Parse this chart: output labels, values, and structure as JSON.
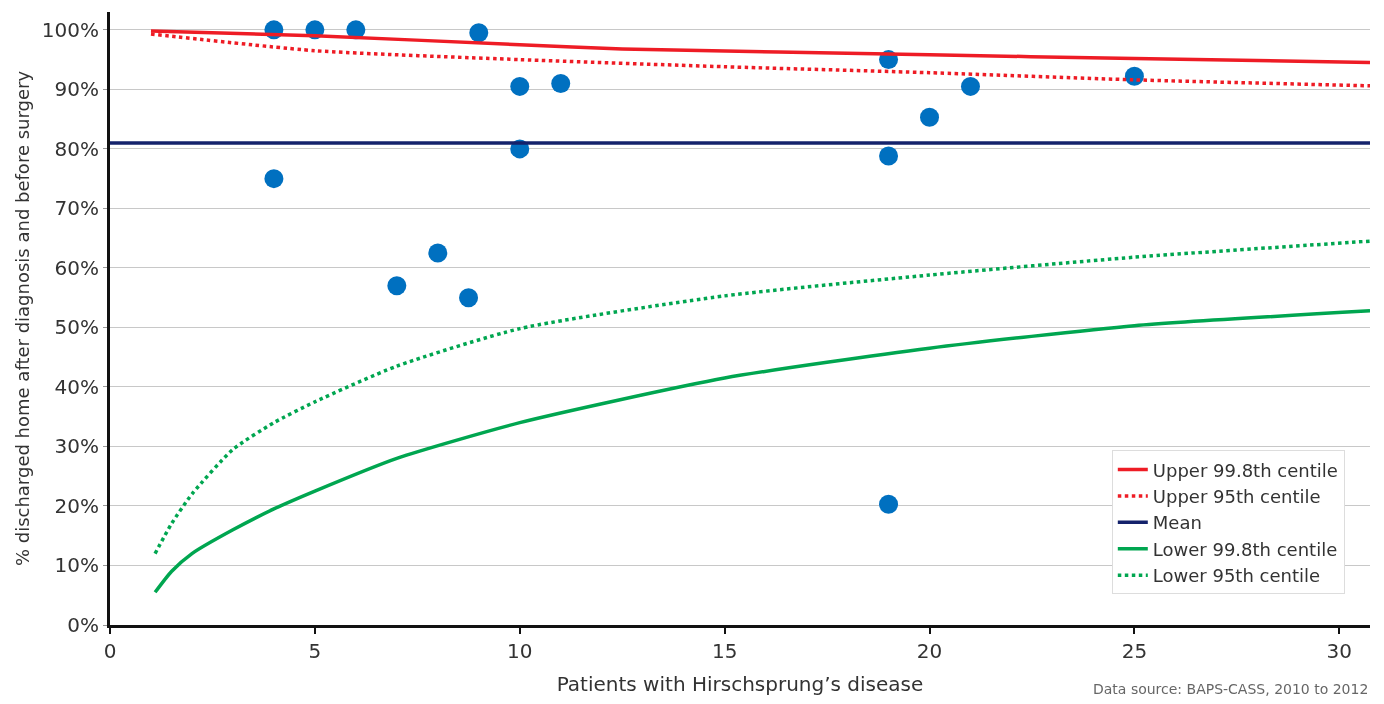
{
  "chart_data": {
    "type": "scatter",
    "xlabel": "Patients with Hirschsprung’s disease",
    "ylabel": "% discharged home after diagnosis and before surgery",
    "xlim": [
      0,
      30.75
    ],
    "xticks": [
      0,
      5,
      10,
      15,
      20,
      25,
      30
    ],
    "ylim": [
      0,
      103
    ],
    "yticks": [
      {
        "value": 0,
        "label": "0%"
      },
      {
        "value": 10,
        "label": "10%"
      },
      {
        "value": 20,
        "label": "20%"
      },
      {
        "value": 30,
        "label": "30%"
      },
      {
        "value": 40,
        "label": "40%"
      },
      {
        "value": 50,
        "label": "50%"
      },
      {
        "value": 60,
        "label": "60%"
      },
      {
        "value": 70,
        "label": "70%"
      },
      {
        "value": 80,
        "label": "80%"
      },
      {
        "value": 90,
        "label": "90%"
      },
      {
        "value": 100,
        "label": "100%"
      }
    ],
    "grid": "y",
    "legend": "bottom right",
    "marker": "circle",
    "annotations": [
      "Data source: BAPS-CASS, 2010 to 2012"
    ],
    "series": [
      {
        "color": "#0070c0",
        "x": [
          4,
          5,
          6,
          9,
          4,
          7,
          8,
          8.75,
          10,
          10,
          11,
          19,
          19,
          20,
          21,
          25,
          19
        ],
        "values": [
          100,
          100,
          100,
          99.5,
          75,
          57,
          62.5,
          55,
          90.5,
          80,
          91,
          95,
          78.8,
          85.3,
          90.5,
          92.2,
          20.3
        ]
      },
      {
        "type": "line",
        "name": "Upper 99.8th centile",
        "color": "#ee1c25",
        "line_style": "solid",
        "marker": "none",
        "x": [
          1,
          5,
          10,
          12.5,
          20,
          25,
          30.75
        ],
        "values": [
          99.8,
          99,
          97.5,
          96.8,
          95.8,
          95.2,
          94.5
        ]
      },
      {
        "type": "line",
        "name": "Upper 95th centile",
        "color": "#ee1c25",
        "line_style": "dotted",
        "marker": "none",
        "x": [
          1,
          5,
          10,
          15,
          20,
          25,
          30.75
        ],
        "values": [
          99.3,
          96.5,
          95,
          93.8,
          92.8,
          91.6,
          90.6
        ]
      },
      {
        "type": "line",
        "name": "Mean",
        "color": "#14226b",
        "line_style": "solid",
        "marker": "none",
        "x": [
          0,
          30.75
        ],
        "values": [
          81,
          81
        ]
      },
      {
        "type": "line",
        "name": "Lower 99.8th centile",
        "color": "#00a650",
        "line_style": "solid",
        "marker": "none",
        "x": [
          1.1,
          1.5,
          2,
          3,
          4,
          5,
          7,
          10,
          15,
          20,
          25,
          30.75
        ],
        "values": [
          5.5,
          9,
          12,
          16,
          19.5,
          22.5,
          28,
          34,
          41.5,
          46.5,
          50.3,
          52.8
        ]
      },
      {
        "type": "line",
        "name": "Lower 95th centile",
        "color": "#00a650",
        "line_style": "dotted",
        "marker": "none",
        "x": [
          1.1,
          1.5,
          2,
          3,
          4,
          5,
          7,
          10,
          15,
          20,
          25,
          30.75
        ],
        "values": [
          12,
          17,
          22,
          29.5,
          34,
          37.5,
          43.5,
          49.8,
          55.3,
          58.8,
          61.8,
          64.5
        ]
      }
    ]
  }
}
